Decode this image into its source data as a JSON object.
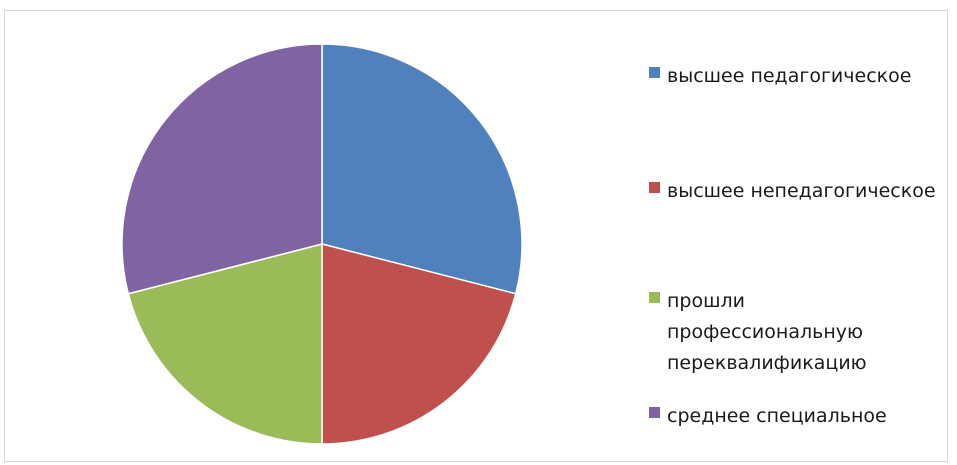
{
  "chart_data": {
    "type": "pie",
    "categories": [
      "высшее педагогическое",
      "высшее непедагогическое",
      "прошли профессиональную переквалификацию",
      "среднее специальное"
    ],
    "values": [
      29,
      21,
      21,
      29
    ],
    "colors": [
      "#4f81bd",
      "#c0504d",
      "#9bbb59",
      "#8064a2"
    ],
    "legend": "right",
    "start_angle": "top",
    "direction": "clockwise"
  },
  "legend": {
    "items": [
      {
        "label": "высшее педагогическое",
        "color": "#4f81bd"
      },
      {
        "label": "высшее непедагогическое",
        "color": "#c0504d"
      },
      {
        "label": "прошли профессиональную переквалификацию",
        "color": "#9bbb59"
      },
      {
        "label": "среднее специальное",
        "color": "#8064a2"
      }
    ]
  }
}
